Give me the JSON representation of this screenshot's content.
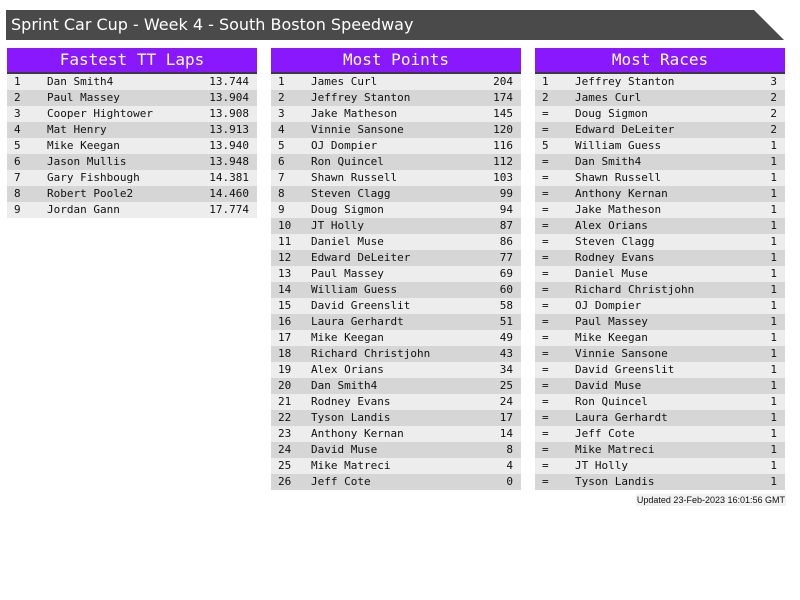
{
  "title": "Sprint Car Cup - Week 4 - South Boston Speedway",
  "colors": {
    "header": "#8a18ff",
    "title_bar": "#4a4a4a"
  },
  "panels": [
    {
      "title": "Fastest TT Laps",
      "rows": [
        [
          "1",
          "Dan Smith4",
          "13.744"
        ],
        [
          "2",
          "Paul Massey",
          "13.904"
        ],
        [
          "3",
          "Cooper Hightower",
          "13.908"
        ],
        [
          "4",
          "Mat Henry",
          "13.913"
        ],
        [
          "5",
          "Mike Keegan",
          "13.940"
        ],
        [
          "6",
          "Jason Mullis",
          "13.948"
        ],
        [
          "7",
          "Gary Fishbough",
          "14.381"
        ],
        [
          "8",
          "Robert Poole2",
          "14.460"
        ],
        [
          "9",
          "Jordan Gann",
          "17.774"
        ]
      ]
    },
    {
      "title": "Most Points",
      "rows": [
        [
          "1",
          "James Curl",
          "204"
        ],
        [
          "2",
          "Jeffrey Stanton",
          "174"
        ],
        [
          "3",
          "Jake Matheson",
          "145"
        ],
        [
          "4",
          "Vinnie Sansone",
          "120"
        ],
        [
          "5",
          "OJ Dompier",
          "116"
        ],
        [
          "6",
          "Ron Quincel",
          "112"
        ],
        [
          "7",
          "Shawn Russell",
          "103"
        ],
        [
          "8",
          "Steven Clagg",
          "99"
        ],
        [
          "9",
          "Doug Sigmon",
          "94"
        ],
        [
          "10",
          "JT Holly",
          "87"
        ],
        [
          "11",
          "Daniel Muse",
          "86"
        ],
        [
          "12",
          "Edward DeLeiter",
          "77"
        ],
        [
          "13",
          "Paul Massey",
          "69"
        ],
        [
          "14",
          "William Guess",
          "60"
        ],
        [
          "15",
          "David Greenslit",
          "58"
        ],
        [
          "16",
          "Laura Gerhardt",
          "51"
        ],
        [
          "17",
          "Mike Keegan",
          "49"
        ],
        [
          "18",
          "Richard Christjohn",
          "43"
        ],
        [
          "19",
          "Alex Orians",
          "34"
        ],
        [
          "20",
          "Dan Smith4",
          "25"
        ],
        [
          "21",
          "Rodney Evans",
          "24"
        ],
        [
          "22",
          "Tyson Landis",
          "17"
        ],
        [
          "23",
          "Anthony Kernan",
          "14"
        ],
        [
          "24",
          "David Muse",
          "8"
        ],
        [
          "25",
          "Mike Matreci",
          "4"
        ],
        [
          "26",
          "Jeff Cote",
          "0"
        ]
      ]
    },
    {
      "title": "Most Races",
      "rows": [
        [
          "1",
          "Jeffrey Stanton",
          "3"
        ],
        [
          "2",
          "James Curl",
          "2"
        ],
        [
          "=",
          "Doug Sigmon",
          "2"
        ],
        [
          "=",
          "Edward DeLeiter",
          "2"
        ],
        [
          "5",
          "William Guess",
          "1"
        ],
        [
          "=",
          "Dan Smith4",
          "1"
        ],
        [
          "=",
          "Shawn Russell",
          "1"
        ],
        [
          "=",
          "Anthony Kernan",
          "1"
        ],
        [
          "=",
          "Jake Matheson",
          "1"
        ],
        [
          "=",
          "Alex Orians",
          "1"
        ],
        [
          "=",
          "Steven Clagg",
          "1"
        ],
        [
          "=",
          "Rodney Evans",
          "1"
        ],
        [
          "=",
          "Daniel Muse",
          "1"
        ],
        [
          "=",
          "Richard Christjohn",
          "1"
        ],
        [
          "=",
          "OJ Dompier",
          "1"
        ],
        [
          "=",
          "Paul Massey",
          "1"
        ],
        [
          "=",
          "Mike Keegan",
          "1"
        ],
        [
          "=",
          "Vinnie Sansone",
          "1"
        ],
        [
          "=",
          "David Greenslit",
          "1"
        ],
        [
          "=",
          "David Muse",
          "1"
        ],
        [
          "=",
          "Ron Quincel",
          "1"
        ],
        [
          "=",
          "Laura Gerhardt",
          "1"
        ],
        [
          "=",
          "Jeff Cote",
          "1"
        ],
        [
          "=",
          "Mike Matreci",
          "1"
        ],
        [
          "=",
          "JT Holly",
          "1"
        ],
        [
          "=",
          "Tyson Landis",
          "1"
        ]
      ]
    }
  ],
  "updated": "Updated 23-Feb-2023 16:01:56 GMT"
}
